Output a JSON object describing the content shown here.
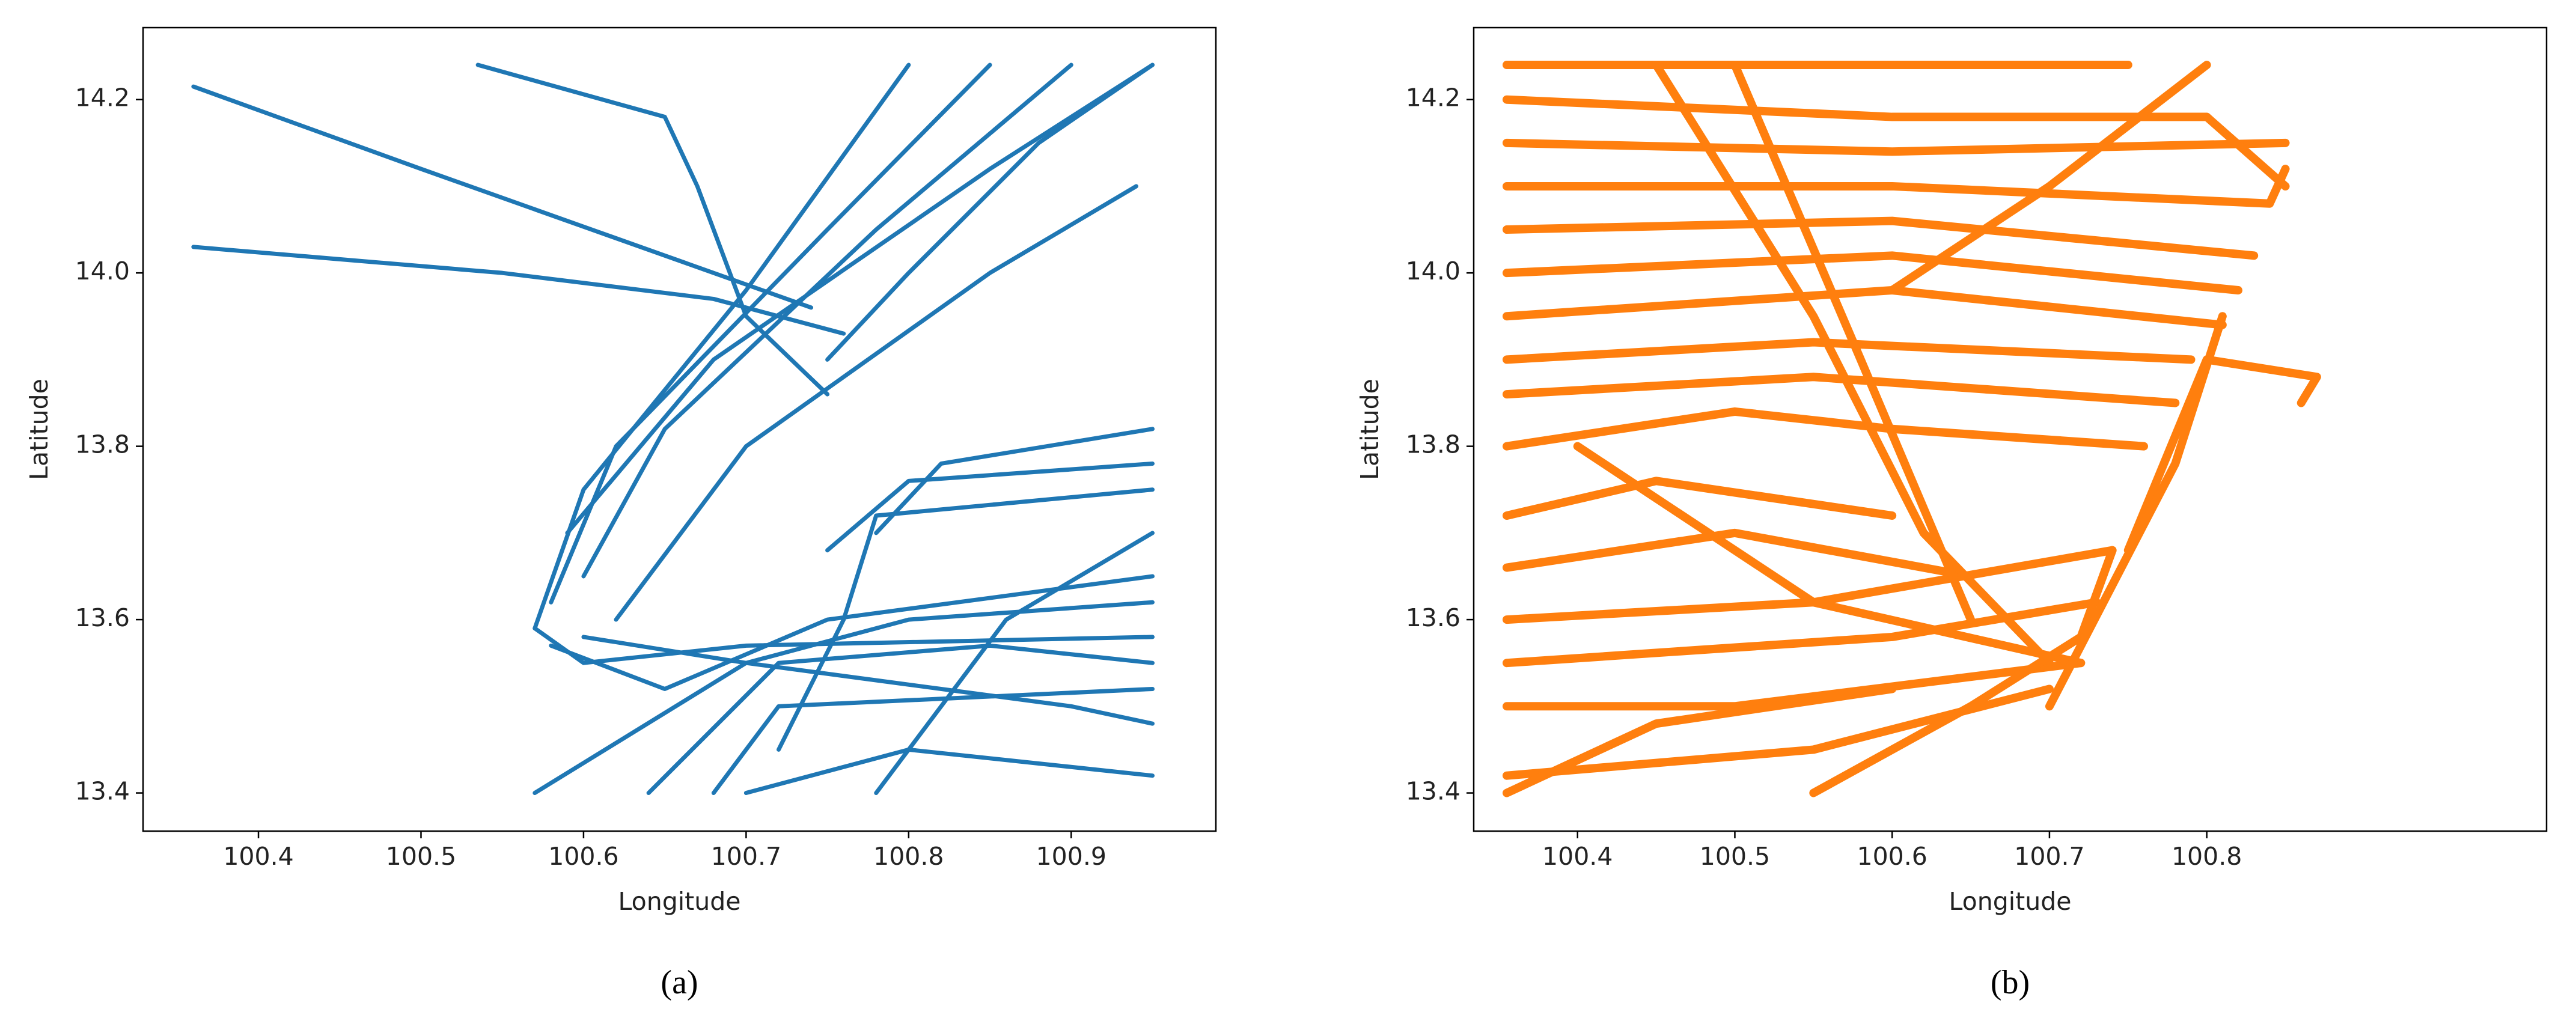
{
  "chart_data": [
    {
      "type": "scatter",
      "caption": "(a)",
      "x_label": "Longitude",
      "y_label": "Latitude",
      "color": "#1f77b4",
      "xlim": [
        100.329,
        100.989
      ],
      "ylim": [
        13.356,
        14.283
      ],
      "xticks": [
        100.4,
        100.5,
        100.6,
        100.7,
        100.8,
        100.9
      ],
      "yticks": [
        13.4,
        13.6,
        13.8,
        {
          "value": 14,
          "label": "14.0"
        },
        14.2
      ],
      "series": [
        {
          "x": [
            100.36,
            100.5,
            100.65,
            100.74
          ],
          "y": [
            14.215,
            14.12,
            14.02,
            13.96
          ]
        },
        {
          "x": [
            100.36,
            100.55,
            100.68,
            100.76
          ],
          "y": [
            14.03,
            14.0,
            13.97,
            13.93
          ]
        },
        {
          "x": [
            100.535,
            100.65,
            100.67,
            100.7,
            100.75
          ],
          "y": [
            14.24,
            14.18,
            14.1,
            13.95,
            13.86
          ]
        },
        {
          "x": [
            100.57,
            100.6,
            100.7,
            100.8
          ],
          "y": [
            13.59,
            13.75,
            13.98,
            14.24
          ]
        },
        {
          "x": [
            100.58,
            100.62,
            100.75,
            100.85
          ],
          "y": [
            13.62,
            13.8,
            14.05,
            14.24
          ]
        },
        {
          "x": [
            100.6,
            100.65,
            100.78,
            100.9
          ],
          "y": [
            13.65,
            13.82,
            14.05,
            14.24
          ]
        },
        {
          "x": [
            100.59,
            100.68,
            100.85,
            100.95
          ],
          "y": [
            13.7,
            13.9,
            14.12,
            14.24
          ]
        },
        {
          "x": [
            100.62,
            100.7,
            100.85,
            100.94
          ],
          "y": [
            13.6,
            13.8,
            14.0,
            14.1
          ]
        },
        {
          "x": [
            100.57,
            100.6,
            100.7,
            100.95
          ],
          "y": [
            13.59,
            13.55,
            13.57,
            13.58
          ]
        },
        {
          "x": [
            100.58,
            100.65,
            100.75,
            100.95
          ],
          "y": [
            13.57,
            13.52,
            13.6,
            13.65
          ]
        },
        {
          "x": [
            100.57,
            100.7,
            100.8,
            100.95
          ],
          "y": [
            13.4,
            13.55,
            13.6,
            13.62
          ]
        },
        {
          "x": [
            100.64,
            100.72,
            100.85,
            100.95
          ],
          "y": [
            13.4,
            13.55,
            13.57,
            13.55
          ]
        },
        {
          "x": [
            100.68,
            100.72,
            100.95
          ],
          "y": [
            13.4,
            13.5,
            13.52
          ]
        },
        {
          "x": [
            100.7,
            100.8,
            100.95
          ],
          "y": [
            13.4,
            13.45,
            13.42
          ]
        },
        {
          "x": [
            100.75,
            100.8,
            100.95
          ],
          "y": [
            13.68,
            13.76,
            13.78
          ]
        },
        {
          "x": [
            100.78,
            100.82,
            100.95
          ],
          "y": [
            13.7,
            13.78,
            13.82
          ]
        },
        {
          "x": [
            100.72,
            100.76,
            100.78,
            100.95
          ],
          "y": [
            13.45,
            13.6,
            13.72,
            13.75
          ]
        },
        {
          "x": [
            100.6,
            100.7,
            100.9,
            100.95
          ],
          "y": [
            13.58,
            13.55,
            13.5,
            13.48
          ]
        },
        {
          "x": [
            100.75,
            100.8,
            100.88,
            100.95
          ],
          "y": [
            13.9,
            14.0,
            14.15,
            14.24
          ]
        },
        {
          "x": [
            100.78,
            100.86,
            100.95
          ],
          "y": [
            13.4,
            13.6,
            13.7
          ]
        }
      ]
    },
    {
      "type": "scatter",
      "caption": "(b)",
      "x_label": "Longitude",
      "y_label": "Latitude",
      "color": "#ff7f0e",
      "xlim": [
        100.334,
        101.016
      ],
      "ylim": [
        13.356,
        14.283
      ],
      "xticks": [
        100.4,
        100.5,
        100.6,
        100.7,
        100.8
      ],
      "yticks": [
        13.4,
        13.6,
        13.8,
        {
          "value": 14,
          "label": "14.0"
        },
        14.2
      ],
      "series": [
        {
          "x": [
            100.355,
            100.55,
            100.7
          ],
          "y": [
            13.42,
            13.45,
            13.52
          ]
        },
        {
          "x": [
            100.355,
            100.5,
            100.72
          ],
          "y": [
            13.5,
            13.5,
            13.55
          ]
        },
        {
          "x": [
            100.355,
            100.6,
            100.73
          ],
          "y": [
            13.55,
            13.58,
            13.62
          ]
        },
        {
          "x": [
            100.355,
            100.55,
            100.74
          ],
          "y": [
            13.6,
            13.62,
            13.68
          ]
        },
        {
          "x": [
            100.355,
            100.5,
            100.65
          ],
          "y": [
            13.66,
            13.7,
            13.65
          ]
        },
        {
          "x": [
            100.355,
            100.45,
            100.6
          ],
          "y": [
            13.72,
            13.76,
            13.72
          ]
        },
        {
          "x": [
            100.355,
            100.5,
            100.6,
            100.76
          ],
          "y": [
            13.8,
            13.84,
            13.82,
            13.8
          ]
        },
        {
          "x": [
            100.355,
            100.55,
            100.78
          ],
          "y": [
            13.86,
            13.88,
            13.85
          ]
        },
        {
          "x": [
            100.355,
            100.55,
            100.79
          ],
          "y": [
            13.9,
            13.92,
            13.9
          ]
        },
        {
          "x": [
            100.355,
            100.6,
            100.81
          ],
          "y": [
            13.95,
            13.98,
            13.94
          ]
        },
        {
          "x": [
            100.355,
            100.6,
            100.82
          ],
          "y": [
            14.0,
            14.02,
            13.98
          ]
        },
        {
          "x": [
            100.355,
            100.6,
            100.83
          ],
          "y": [
            14.05,
            14.06,
            14.02
          ]
        },
        {
          "x": [
            100.355,
            100.6,
            100.84,
            100.85
          ],
          "y": [
            14.1,
            14.1,
            14.08,
            14.12
          ]
        },
        {
          "x": [
            100.355,
            100.6,
            100.85
          ],
          "y": [
            14.15,
            14.14,
            14.15
          ]
        },
        {
          "x": [
            100.355,
            100.6,
            100.8,
            100.85
          ],
          "y": [
            14.2,
            14.18,
            14.18,
            14.1
          ]
        },
        {
          "x": [
            100.355,
            100.75
          ],
          "y": [
            14.24,
            14.24
          ]
        },
        {
          "x": [
            100.45,
            100.55,
            100.62,
            100.7
          ],
          "y": [
            14.24,
            13.95,
            13.7,
            13.55
          ]
        },
        {
          "x": [
            100.5,
            100.58,
            100.65
          ],
          "y": [
            14.24,
            13.9,
            13.6
          ]
        },
        {
          "x": [
            100.4,
            100.55,
            100.72
          ],
          "y": [
            13.8,
            13.62,
            13.55
          ]
        },
        {
          "x": [
            100.55,
            100.65,
            100.72,
            100.74
          ],
          "y": [
            13.4,
            13.5,
            13.58,
            13.68
          ]
        },
        {
          "x": [
            100.355,
            100.45,
            100.6
          ],
          "y": [
            13.4,
            13.48,
            13.52
          ]
        },
        {
          "x": [
            100.75,
            100.8,
            100.87,
            100.86
          ],
          "y": [
            13.68,
            13.9,
            13.88,
            13.85
          ]
        },
        {
          "x": [
            100.7,
            100.78,
            100.81
          ],
          "y": [
            13.5,
            13.78,
            13.95
          ]
        },
        {
          "x": [
            100.6,
            100.7,
            100.8
          ],
          "y": [
            13.98,
            14.1,
            14.24
          ]
        }
      ]
    }
  ]
}
